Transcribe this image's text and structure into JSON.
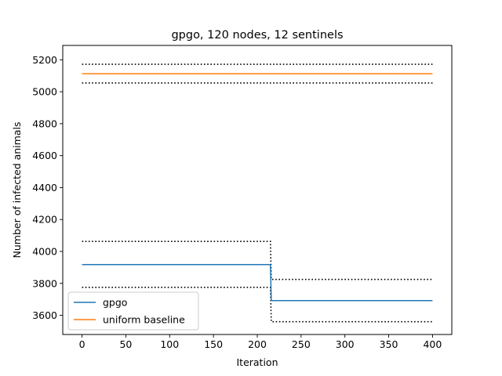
{
  "chart_data": {
    "type": "line",
    "title": "gpgo, 120 nodes, 12 sentinels",
    "xlabel": "Iteration",
    "ylabel": "Number of infected animals",
    "xlim": [
      -22,
      422
    ],
    "ylim": [
      3480,
      5290
    ],
    "xticks": [
      0,
      50,
      100,
      150,
      200,
      250,
      300,
      350,
      400
    ],
    "yticks": [
      3600,
      3800,
      4000,
      4200,
      4400,
      4600,
      4800,
      5000,
      5200
    ],
    "grid": false,
    "legend": {
      "placement": "lower-left",
      "entries": [
        "gpgo",
        "uniform baseline"
      ]
    },
    "series": [
      {
        "name": "gpgo",
        "color": "#1f77b4",
        "style": "solid",
        "points": [
          [
            0,
            3918
          ],
          [
            215,
            3918
          ],
          [
            216,
            3692
          ],
          [
            400,
            3692
          ]
        ]
      },
      {
        "name": "uniform baseline",
        "color": "#ff7f0e",
        "style": "solid",
        "points": [
          [
            0,
            5113
          ],
          [
            400,
            5113
          ]
        ]
      }
    ],
    "bands": [
      {
        "of": "uniform baseline",
        "bound": "upper",
        "color": "#000000",
        "style": "dotted",
        "points": [
          [
            0,
            5172
          ],
          [
            400,
            5172
          ]
        ]
      },
      {
        "of": "uniform baseline",
        "bound": "lower",
        "color": "#000000",
        "style": "dotted",
        "points": [
          [
            0,
            5055
          ],
          [
            400,
            5055
          ]
        ]
      },
      {
        "of": "gpgo",
        "bound": "upper",
        "color": "#000000",
        "style": "dotted",
        "points": [
          [
            0,
            4063
          ],
          [
            215,
            4063
          ],
          [
            216,
            3825
          ],
          [
            400,
            3825
          ]
        ]
      },
      {
        "of": "gpgo",
        "bound": "lower",
        "color": "#000000",
        "style": "dotted",
        "points": [
          [
            0,
            3775
          ],
          [
            215,
            3775
          ],
          [
            216,
            3560
          ],
          [
            400,
            3560
          ]
        ]
      }
    ]
  }
}
